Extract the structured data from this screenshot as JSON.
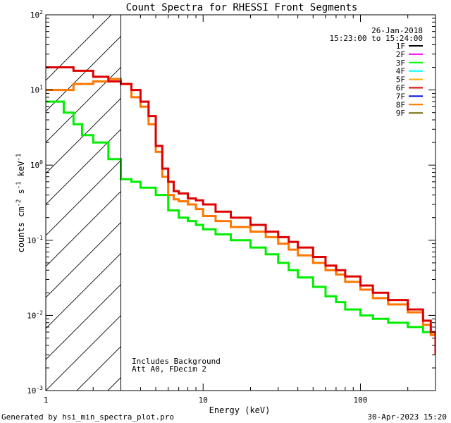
{
  "chart_data": {
    "type": "line",
    "title": "Count Spectra for RHESSI Front Segments",
    "xlabel": "Energy (keV)",
    "ylabel": "counts cm-2 s-1 keV-1",
    "xscale": "log",
    "yscale": "log",
    "xlim": [
      1,
      300
    ],
    "ylim": [
      0.001,
      100
    ],
    "x_tick_labels": [
      {
        "value": 1,
        "label": "1"
      },
      {
        "value": 10,
        "label": "10"
      },
      {
        "value": 100,
        "label": "100"
      }
    ],
    "y_tick_labels": [
      {
        "value": 100,
        "base": "10",
        "exp": "2"
      },
      {
        "value": 10,
        "base": "10",
        "exp": "1"
      },
      {
        "value": 1,
        "base": "10",
        "exp": "0"
      },
      {
        "value": 0.1,
        "base": "10",
        "exp": "-1"
      },
      {
        "value": 0.01,
        "base": "10",
        "exp": "-2"
      },
      {
        "value": 0.001,
        "base": "10",
        "exp": "-3"
      }
    ],
    "date": "26-Jan-2018",
    "time_range": "15:23:00 to 15:24:00",
    "legend": [
      {
        "name": "1F",
        "color": "#000000"
      },
      {
        "name": "2F",
        "color": "#ff00ff"
      },
      {
        "name": "3F",
        "color": "#00ff00"
      },
      {
        "name": "4F",
        "color": "#00ffff"
      },
      {
        "name": "5F",
        "color": "#ffaa00"
      },
      {
        "name": "6F",
        "color": "#dd0000"
      },
      {
        "name": "7F",
        "color": "#0000dd"
      },
      {
        "name": "8F",
        "color": "#ff7700"
      },
      {
        "name": "9F",
        "color": "#6b6b00"
      }
    ],
    "annotations": [
      "Includes Background",
      "Att A0, FDecim 2"
    ],
    "shaded_region_keV": [
      1,
      3
    ],
    "series": [
      {
        "name": "6F",
        "color": "#dd0000",
        "x": [
          1.0,
          1.5,
          2.0,
          2.5,
          3.0,
          3.5,
          4.0,
          4.5,
          5.0,
          5.5,
          6.0,
          6.5,
          7.0,
          8.0,
          9.0,
          10.0,
          12.0,
          15.0,
          20.0,
          25.0,
          30.0,
          35.0,
          40.0,
          50.0,
          60.0,
          70.0,
          80.0,
          100.0,
          120.0,
          150.0,
          200.0,
          250.0,
          280.0,
          300.0
        ],
        "y": [
          20,
          18,
          15,
          13,
          12,
          10,
          7,
          4.5,
          1.8,
          0.9,
          0.6,
          0.45,
          0.42,
          0.36,
          0.34,
          0.3,
          0.24,
          0.2,
          0.16,
          0.13,
          0.11,
          0.095,
          0.08,
          0.06,
          0.046,
          0.04,
          0.033,
          0.025,
          0.02,
          0.016,
          0.012,
          0.0085,
          0.006,
          0.003
        ]
      },
      {
        "name": "8F",
        "color": "#ff7700",
        "x": [
          1.0,
          1.5,
          2.0,
          2.5,
          3.0,
          3.5,
          4.0,
          4.5,
          5.0,
          5.5,
          6.0,
          6.5,
          7.0,
          8.0,
          9.0,
          10.0,
          12.0,
          15.0,
          20.0,
          25.0,
          30.0,
          35.0,
          40.0,
          50.0,
          60.0,
          70.0,
          80.0,
          100.0,
          120.0,
          150.0,
          200.0,
          250.0,
          280.0,
          300.0
        ],
        "y": [
          10,
          12,
          13,
          14,
          12,
          8,
          6,
          3.5,
          1.5,
          0.7,
          0.4,
          0.35,
          0.33,
          0.3,
          0.26,
          0.21,
          0.18,
          0.15,
          0.13,
          0.11,
          0.09,
          0.075,
          0.063,
          0.05,
          0.04,
          0.035,
          0.028,
          0.022,
          0.017,
          0.014,
          0.011,
          0.0075,
          0.0055,
          0.0045
        ]
      },
      {
        "name": "3F",
        "color": "#00ee00",
        "x": [
          1.0,
          1.3,
          1.5,
          1.7,
          2.0,
          2.5,
          3.0,
          3.5,
          4.0,
          5.0,
          6.0,
          7.0,
          8.0,
          9.0,
          10.0,
          12.0,
          15.0,
          20.0,
          25.0,
          30.0,
          35.0,
          40.0,
          50.0,
          60.0,
          70.0,
          80.0,
          100.0,
          120.0,
          150.0,
          200.0,
          250.0,
          280.0,
          300.0
        ],
        "y": [
          7,
          5,
          3.5,
          2.5,
          2.0,
          1.2,
          0.65,
          0.6,
          0.5,
          0.4,
          0.25,
          0.2,
          0.18,
          0.16,
          0.14,
          0.12,
          0.1,
          0.08,
          0.065,
          0.05,
          0.04,
          0.032,
          0.024,
          0.018,
          0.015,
          0.012,
          0.01,
          0.009,
          0.008,
          0.007,
          0.006,
          0.0055,
          0.005
        ]
      }
    ]
  },
  "footer": {
    "generated_by": "Generated by hsi_min_spectra_plot.pro",
    "timestamp": "30-Apr-2023 15:20"
  }
}
